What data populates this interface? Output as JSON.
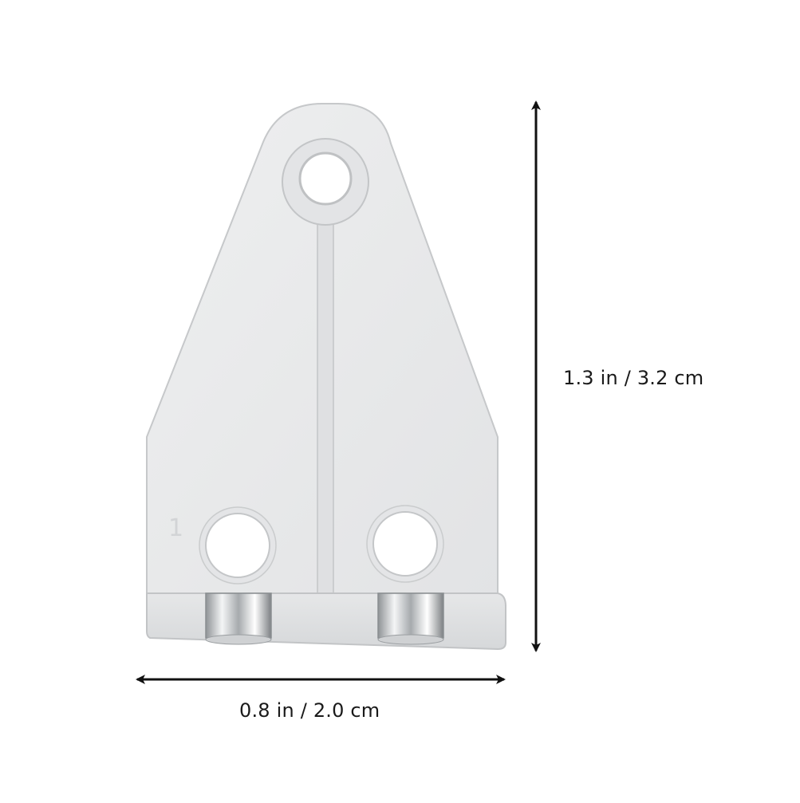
{
  "dimensions": {
    "height_label": "1.3 in / 3.2 cm",
    "width_label": "0.8 in / 2.0 cm"
  },
  "part": {
    "embossed_mark": "1"
  },
  "colors": {
    "background": "#ffffff",
    "part_face": "#e9eaeb",
    "part_edge": "#c9cbcd",
    "arrow": "#111111",
    "label": "#1a1a1a"
  }
}
